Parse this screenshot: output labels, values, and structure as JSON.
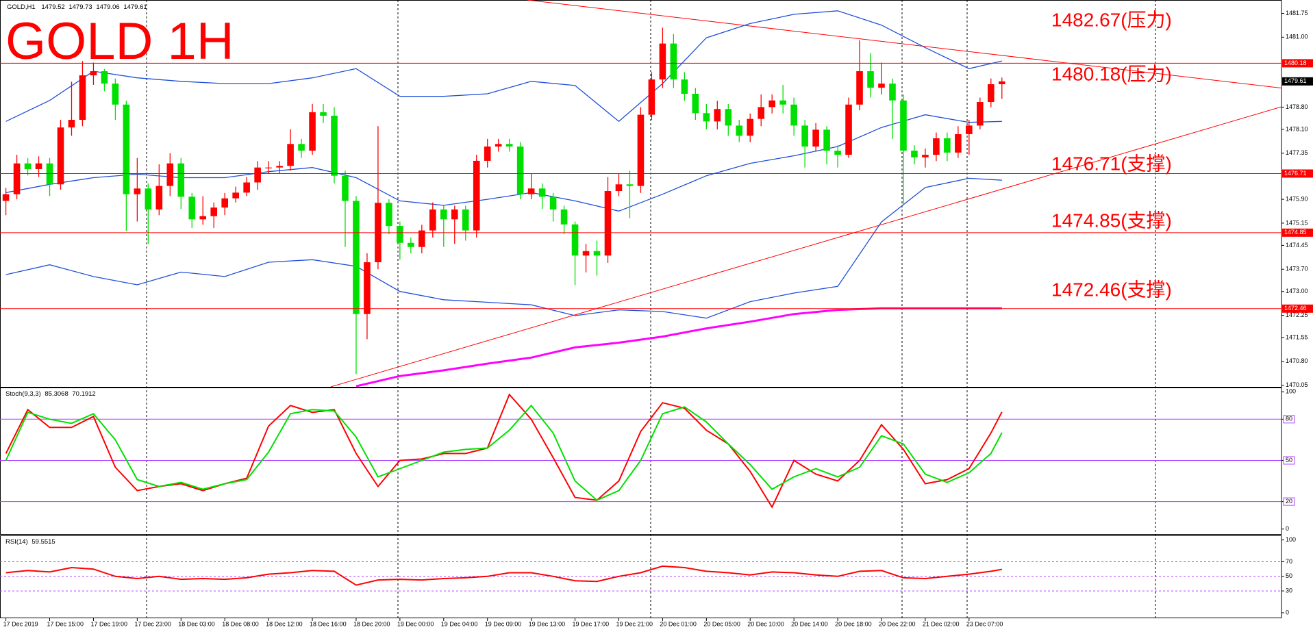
{
  "chart_data": [
    {
      "type": "candlestick",
      "title": "GOLD,H1",
      "overlay_title": "GOLD 1H",
      "open": [
        1475.85,
        1476.06,
        1477.03,
        1476.85,
        1477.03,
        1476.37,
        1478.16,
        1478.4,
        1479.8,
        1479.93,
        1479.54,
        1478.88,
        1476.06,
        1476.24,
        1475.58,
        1476.32,
        1477.03,
        1475.98,
        1475.27,
        1475.37,
        1475.64,
        1475.93,
        1476.11,
        1476.43,
        1476.9,
        1476.9,
        1476.95,
        1477.64,
        1477.43,
        1478.64,
        1478.53,
        1476.64,
        1475.85,
        1472.29,
        1473.92,
        1475.79,
        1475.06,
        1474.53,
        1474.4,
        1474.92,
        1475.58,
        1475.27,
        1475.58,
        1474.92,
        1477.11,
        1477.56,
        1477.64,
        1477.56,
        1476.06,
        1476.24,
        1475.98,
        1475.58,
        1475.11,
        1474.13,
        1474.27,
        1474.13,
        1476.16,
        1476.37,
        1476.32,
        1478.56,
        1479.67,
        1480.8,
        1479.67,
        1479.22,
        1478.61,
        1478.35,
        1478.74,
        1478.22,
        1477.9,
        1478.43,
        1478.8,
        1479.01,
        1478.88,
        1478.22,
        1477.56,
        1478.09,
        1477.43,
        1477.3,
        1478.88,
        1479.93,
        1479.41,
        1479.54,
        1479.01,
        1477.43,
        1477.22,
        1477.3,
        1477.82,
        1477.37,
        1477.95,
        1478.22,
        1478.96,
        1479.52
      ],
      "high": [
        1476.26,
        1477.3,
        1477.2,
        1477.25,
        1477.2,
        1478.4,
        1479.6,
        1480.25,
        1480.2,
        1480.0,
        1479.7,
        1479.0,
        1477.2,
        1476.4,
        1477.0,
        1477.35,
        1477.2,
        1476.1,
        1476.0,
        1475.8,
        1476.1,
        1476.3,
        1476.6,
        1477.1,
        1477.1,
        1477.1,
        1478.1,
        1477.8,
        1478.9,
        1478.9,
        1478.8,
        1476.8,
        1476.0,
        1474.2,
        1478.2,
        1475.9,
        1475.2,
        1474.7,
        1475.1,
        1475.8,
        1475.7,
        1475.7,
        1475.7,
        1477.3,
        1477.8,
        1477.8,
        1477.8,
        1477.7,
        1476.7,
        1476.4,
        1476.1,
        1475.7,
        1475.2,
        1474.5,
        1474.6,
        1476.6,
        1476.7,
        1476.8,
        1478.8,
        1479.9,
        1481.3,
        1481.1,
        1479.9,
        1479.4,
        1478.9,
        1479.0,
        1478.9,
        1478.4,
        1478.6,
        1479.2,
        1479.2,
        1479.5,
        1479.1,
        1478.4,
        1478.3,
        1478.2,
        1477.6,
        1479.1,
        1480.9,
        1480.5,
        1480.2,
        1479.7,
        1479.2,
        1477.6,
        1477.5,
        1478.0,
        1478.0,
        1478.2,
        1478.4,
        1479.1,
        1479.7,
        1479.73
      ],
      "low": [
        1475.4,
        1475.9,
        1476.65,
        1476.6,
        1476.0,
        1476.2,
        1477.9,
        1478.2,
        1479.5,
        1479.3,
        1478.4,
        1474.9,
        1475.2,
        1474.5,
        1475.4,
        1476.0,
        1475.6,
        1475.0,
        1475.1,
        1475.0,
        1475.4,
        1475.8,
        1476.0,
        1476.2,
        1476.7,
        1476.7,
        1476.8,
        1477.2,
        1477.3,
        1478.3,
        1476.4,
        1474.4,
        1470.4,
        1471.5,
        1473.7,
        1474.8,
        1474.0,
        1474.2,
        1474.2,
        1474.7,
        1474.4,
        1474.5,
        1474.6,
        1474.7,
        1476.9,
        1477.4,
        1477.4,
        1475.9,
        1475.9,
        1475.6,
        1475.2,
        1474.8,
        1473.2,
        1473.6,
        1473.5,
        1473.9,
        1476.0,
        1475.3,
        1476.1,
        1478.4,
        1479.4,
        1479.4,
        1479.0,
        1478.4,
        1478.1,
        1478.1,
        1477.9,
        1477.7,
        1477.7,
        1478.2,
        1478.6,
        1478.6,
        1477.9,
        1476.9,
        1477.4,
        1477.0,
        1476.9,
        1477.2,
        1478.7,
        1479.1,
        1479.2,
        1477.8,
        1475.7,
        1477.0,
        1476.9,
        1477.1,
        1477.1,
        1477.2,
        1477.3,
        1478.1,
        1478.8,
        1479.06
      ],
      "close": [
        1476.06,
        1477.03,
        1476.85,
        1477.03,
        1476.37,
        1478.16,
        1478.4,
        1479.8,
        1479.93,
        1479.54,
        1478.88,
        1476.06,
        1476.24,
        1475.58,
        1476.32,
        1477.03,
        1475.98,
        1475.27,
        1475.37,
        1475.64,
        1475.93,
        1476.11,
        1476.43,
        1476.9,
        1476.9,
        1476.95,
        1477.64,
        1477.43,
        1478.64,
        1478.53,
        1476.64,
        1475.85,
        1472.29,
        1473.92,
        1475.79,
        1475.06,
        1474.53,
        1474.4,
        1474.92,
        1475.58,
        1475.27,
        1475.58,
        1474.92,
        1477.11,
        1477.56,
        1477.64,
        1477.56,
        1476.06,
        1476.24,
        1475.98,
        1475.58,
        1475.11,
        1474.13,
        1474.27,
        1474.13,
        1476.16,
        1476.37,
        1476.32,
        1478.56,
        1479.67,
        1480.8,
        1479.67,
        1479.22,
        1478.61,
        1478.35,
        1478.74,
        1478.22,
        1477.9,
        1478.43,
        1478.8,
        1479.01,
        1478.88,
        1478.22,
        1477.56,
        1478.09,
        1477.43,
        1477.3,
        1478.88,
        1479.93,
        1479.41,
        1479.54,
        1479.01,
        1477.43,
        1477.22,
        1477.3,
        1477.82,
        1477.37,
        1477.95,
        1478.22,
        1478.96,
        1479.52,
        1479.61
      ],
      "up_color": "#ff0000",
      "down_color": "#00e000",
      "ylim": [
        1470.0,
        1482.17
      ],
      "yticks": [
        1481.75,
        {
          "value": 1481,
          "label": "1481.00"
        },
        {
          "value": 1478.8,
          "label": "1478.80"
        },
        {
          "value": 1478.1,
          "label": "1478.10"
        },
        1477.35,
        {
          "value": 1475.9,
          "label": "1475.90"
        },
        1475.15,
        1474.45,
        {
          "value": 1473.7,
          "label": "1473.70"
        },
        {
          "value": 1473,
          "label": "1473.00"
        },
        1472.25,
        1471.55,
        {
          "value": 1470.8,
          "label": "1470.80"
        },
        1470.05
      ],
      "xticks": [
        {
          "value": 0,
          "label": "17 Dec 2019"
        },
        {
          "value": 4,
          "label": "17 Dec 15:00"
        },
        {
          "value": 8,
          "label": "17 Dec 19:00"
        },
        {
          "value": 12,
          "label": "17 Dec 23:00"
        },
        {
          "value": 16,
          "label": "18 Dec 03:00"
        },
        {
          "value": 20,
          "label": "18 Dec 08:00"
        },
        {
          "value": 24,
          "label": "18 Dec 12:00"
        },
        {
          "value": 28,
          "label": "18 Dec 16:00"
        },
        {
          "value": 32,
          "label": "18 Dec 20:00"
        },
        {
          "value": 36,
          "label": "19 Dec 00:00"
        },
        {
          "value": 40,
          "label": "19 Dec 04:00"
        },
        {
          "value": 44,
          "label": "19 Dec 09:00"
        },
        {
          "value": 48,
          "label": "19 Dec 13:00"
        },
        {
          "value": 52,
          "label": "19 Dec 17:00"
        },
        {
          "value": 56,
          "label": "19 Dec 21:00"
        },
        {
          "value": 60,
          "label": "20 Dec 01:00"
        },
        {
          "value": 64,
          "label": "20 Dec 05:00"
        },
        {
          "value": 68,
          "label": "20 Dec 10:00"
        },
        {
          "value": 72,
          "label": "20 Dec 14:00"
        },
        {
          "value": 76,
          "label": "20 Dec 18:00"
        },
        {
          "value": 80,
          "label": "20 Dec 22:00"
        },
        {
          "value": 84,
          "label": "21 Dec 02:00"
        },
        {
          "value": 88,
          "label": "23 Dec 07:00"
        }
      ],
      "levels": [
        1480.18,
        1476.71,
        1474.85,
        1472.46
      ],
      "level_color": "#ff0000",
      "annotations": [
        "1482.67(压力)",
        "1480.18(压力)",
        "1476.71(支撑)",
        "1474.85(支撑)",
        "1472.46(支撑)"
      ],
      "bands": {
        "color": "#1f4fd8",
        "x": [
          0,
          4,
          8,
          12,
          16,
          20,
          24,
          28,
          32,
          36,
          40,
          44,
          48,
          52,
          56,
          60,
          64,
          68,
          72,
          76,
          80,
          84,
          88,
          91
        ],
        "upper": [
          1478.35,
          1479.01,
          1479.93,
          1479.72,
          1479.61,
          1479.54,
          1479.54,
          1479.72,
          1480.01,
          1479.14,
          1479.14,
          1479.22,
          1479.61,
          1479.48,
          1478.35,
          1479.54,
          1480.98,
          1481.43,
          1481.72,
          1481.83,
          1481.38,
          1480.67,
          1480.01,
          1480.25
        ],
        "middle": [
          1476.11,
          1476.37,
          1476.58,
          1476.69,
          1476.58,
          1476.58,
          1476.77,
          1476.9,
          1476.58,
          1475.85,
          1475.71,
          1475.9,
          1476.11,
          1475.85,
          1475.53,
          1476.06,
          1476.64,
          1477.03,
          1477.27,
          1477.56,
          1478.16,
          1478.56,
          1478.32,
          1478.35
        ],
        "lower": [
          1473.53,
          1473.84,
          1473.47,
          1473.21,
          1473.61,
          1473.47,
          1473.92,
          1474.0,
          1473.79,
          1473.0,
          1472.74,
          1472.66,
          1472.58,
          1472.24,
          1472.42,
          1472.37,
          1472.16,
          1472.68,
          1472.95,
          1473.16,
          1475.19,
          1476.27,
          1476.56,
          1476.5
        ]
      },
      "ma": {
        "color": "#ff00ff",
        "values": [
          null,
          null,
          null,
          null,
          null,
          null,
          null,
          null,
          1470.02,
          1470.34,
          1470.52,
          1470.73,
          1470.92,
          1471.24,
          1471.39,
          1471.58,
          1471.84,
          1472.05,
          1472.29,
          1472.42,
          1472.47,
          1472.47,
          1472.47,
          1472.47
        ]
      }
    },
    {
      "type": "line",
      "title": "Stoch(9,3,3)",
      "x": [
        0,
        2,
        4,
        6,
        8,
        10,
        12,
        14,
        16,
        18,
        20,
        22,
        24,
        26,
        28,
        30,
        32,
        34,
        36,
        38,
        40,
        42,
        44,
        46,
        48,
        50,
        52,
        54,
        56,
        58,
        60,
        62,
        64,
        66,
        68,
        70,
        72,
        74,
        76,
        78,
        80,
        82,
        84,
        86,
        88,
        90,
        91
      ],
      "series": [
        {
          "color": "#ff0000",
          "values": [
            55,
            87,
            74,
            74,
            82,
            45,
            28,
            31,
            33,
            28,
            33,
            37,
            75,
            90,
            85,
            87,
            55,
            31,
            50,
            51,
            55,
            55,
            59,
            98,
            80,
            52,
            23,
            21,
            35,
            71,
            92,
            88,
            72,
            62,
            42,
            16,
            50,
            40,
            35,
            50,
            76,
            58,
            33,
            36,
            44,
            70,
            85.3068
          ]
        },
        {
          "color": "#00e000",
          "values": [
            50,
            85,
            80,
            77,
            84,
            65,
            36,
            31,
            34,
            29,
            33,
            36,
            56,
            84,
            87,
            86,
            67,
            38,
            44,
            50,
            56,
            58,
            59,
            72,
            90,
            70,
            35,
            21,
            28,
            50,
            84,
            89,
            78,
            62,
            47,
            29,
            38,
            44,
            38,
            45,
            68,
            62,
            40,
            34,
            41,
            55,
            70.1912
          ]
        }
      ],
      "ylim": [
        0,
        100
      ],
      "yticks": [
        100,
        80,
        50,
        20,
        0
      ],
      "levels": [
        20,
        50,
        80
      ],
      "level_color": "#b040ff"
    },
    {
      "type": "line",
      "title": "RSI(14)",
      "x": [
        0,
        2,
        4,
        6,
        8,
        10,
        12,
        14,
        16,
        18,
        20,
        22,
        24,
        26,
        28,
        30,
        32,
        34,
        36,
        38,
        40,
        42,
        44,
        46,
        48,
        50,
        52,
        54,
        56,
        58,
        60,
        62,
        64,
        66,
        68,
        70,
        72,
        74,
        76,
        78,
        80,
        82,
        84,
        86,
        88,
        90,
        91
      ],
      "series": [
        {
          "color": "#ff0000",
          "values": [
            55,
            58,
            56,
            62,
            60,
            50,
            47,
            50,
            46,
            47,
            46,
            48,
            53,
            55,
            58,
            57,
            38,
            45,
            46,
            45,
            47,
            48,
            50,
            55,
            55,
            50,
            44,
            43,
            50,
            55,
            64,
            62,
            57,
            55,
            52,
            56,
            55,
            52,
            50,
            57,
            58,
            48,
            47,
            50,
            53,
            57,
            59.5515
          ]
        }
      ],
      "ylim": [
        0,
        100
      ],
      "yticks": [
        100,
        70,
        50,
        30,
        0
      ],
      "levels": [
        30,
        50,
        70
      ],
      "level_color": "#b040ff"
    }
  ]
}
